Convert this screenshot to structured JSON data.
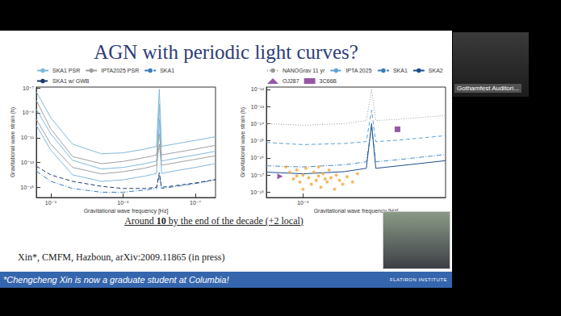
{
  "slide": {
    "title": "AGN with periodic light curves?",
    "caption": {
      "text": "Around 10 by the end of the decade (+2 local)",
      "bold": "10"
    },
    "citation": "Xin*, CMFM, Hazboun, arXiv:2009.11865 (in press)",
    "footer": "*Chengcheng Xin is now a graduate student at Columbia!",
    "logo": "FLATIRON INSTITUTE",
    "video_label": "Gothamfest Auditori..."
  },
  "chart_data": [
    {
      "type": "line",
      "log": true,
      "grid": false,
      "legend": "top-left",
      "xlabel": "Gravitational wave frequency [Hz]",
      "ylabel": "Gravitational wave strain (h)",
      "xlim": [
        6.3e-10,
        1.9e-07
      ],
      "ylim": [
        1.5e-16,
        1.2e-07
      ],
      "xticks": [
        {
          "value": 1e-09,
          "label": "10⁻⁹"
        },
        {
          "value": 1e-08,
          "label": "10⁻⁸"
        },
        {
          "value": 1e-07,
          "label": "10⁻⁷"
        }
      ],
      "yticks": [
        {
          "value": 1e-15,
          "label": "10⁻¹⁵"
        },
        {
          "value": 1e-13,
          "label": "10⁻¹³"
        },
        {
          "value": 1e-11,
          "label": "10⁻¹¹"
        },
        {
          "value": 1e-09,
          "label": "10⁻⁹"
        },
        {
          "value": 1e-07,
          "label": "10⁻⁷"
        }
      ],
      "series": [
        {
          "name": "SKA1 PSR",
          "color": "#7fb8dc",
          "line_style": "solid",
          "x": [
            6.3e-10,
            1e-09,
            2e-09,
            5e-09,
            1e-08,
            2e-08,
            2.9e-08,
            3.17e-08,
            3.4e-08,
            5e-08,
            1e-07,
            1.9e-07
          ],
          "values": [
            5e-08,
            4e-10,
            3e-12,
            5e-13,
            6e-13,
            1.2e-12,
            2e-12,
            8e-08,
            2e-12,
            3e-12,
            6e-12,
            1.2e-11
          ]
        },
        {
          "name": "SKA1 PSR",
          "color": "#7fb8dc",
          "line_style": "solid",
          "x": [
            6.3e-10,
            1e-09,
            2e-09,
            5e-09,
            1e-08,
            2e-08,
            2.9e-08,
            3.17e-08,
            3.4e-08,
            5e-08,
            1e-07,
            1.9e-07
          ],
          "values": [
            2e-09,
            2e-11,
            1.5e-13,
            3e-14,
            4e-14,
            8e-14,
            1.3e-13,
            5e-09,
            1.3e-13,
            2e-13,
            4e-13,
            8e-13
          ]
        },
        {
          "name": "SKA1 PSR",
          "color": "#7fb8dc",
          "line_style": "solid",
          "x": [
            6.3e-10,
            1e-09,
            2e-09,
            5e-09,
            1e-08,
            2e-08,
            2.9e-08,
            3.17e-08,
            3.4e-08,
            5e-08,
            1e-07,
            1.9e-07
          ],
          "values": [
            1e-10,
            1e-12,
            1e-14,
            3e-15,
            4e-15,
            8e-15,
            1.3e-14,
            3e-10,
            1.3e-14,
            2e-14,
            4e-14,
            8e-14
          ]
        },
        {
          "name": "IPTA2025 PSR",
          "color": "#a0a0a0",
          "line_style": "solid",
          "x": [
            6.3e-10,
            1e-09,
            2e-09,
            5e-09,
            1e-08,
            2e-08,
            2.9e-08,
            3.17e-08,
            3.4e-08,
            5e-08,
            1e-07,
            1.9e-07
          ],
          "values": [
            1e-08,
            5e-11,
            3e-13,
            8e-14,
            1.2e-13,
            2.5e-13,
            4e-13,
            2e-11,
            4e-13,
            6e-13,
            1.2e-12,
            2.4e-12
          ]
        },
        {
          "name": "IPTA2025 PSR",
          "color": "#a0a0a0",
          "line_style": "solid",
          "x": [
            6.3e-10,
            1e-09,
            2e-09,
            5e-09,
            1e-08,
            2e-08,
            2.9e-08,
            3.17e-08,
            3.4e-08,
            5e-08,
            1e-07,
            1.9e-07
          ],
          "values": [
            3e-10,
            3e-12,
            4e-14,
            1.2e-14,
            1.8e-14,
            3.5e-14,
            6e-14,
            3e-12,
            6e-14,
            9e-14,
            1.8e-13,
            3.5e-13
          ]
        },
        {
          "name": "SKA1",
          "color": "#3a7bbf",
          "line_style": "dash-dot",
          "x": [
            6.3e-10,
            1e-09,
            2e-09,
            5e-09,
            1e-08,
            2e-08,
            2.9e-08,
            3.17e-08,
            3.4e-08,
            5e-08,
            1e-07,
            1.9e-07
          ],
          "values": [
            2e-14,
            3e-15,
            8e-16,
            4e-16,
            4e-16,
            6e-16,
            8e-16,
            1e-14,
            8e-16,
            1.1e-15,
            2e-15,
            4e-15
          ]
        },
        {
          "name": "SKA1 w/ GWB",
          "color": "#1f3b6e",
          "line_style": "dashed",
          "x": [
            6.3e-10,
            1e-09,
            2e-09,
            5e-09,
            1e-08,
            2e-08,
            2.9e-08,
            3.17e-08,
            3.4e-08,
            5e-08,
            1e-07,
            1.9e-07
          ],
          "values": [
            5e-14,
            1e-14,
            3e-15,
            1.2e-15,
            8e-16,
            8e-16,
            1e-15,
            1.5e-14,
            1e-15,
            1.3e-15,
            2.2e-15,
            4.2e-15
          ]
        }
      ]
    },
    {
      "type": "line",
      "log": true,
      "grid": false,
      "legend": "top-left",
      "xlabel": "Gravitational wave frequency [Hz]",
      "ylabel": "Gravitational wave strain (h)",
      "xlim": [
        5.4e-09,
        1.1e-07
      ],
      "ylim": [
        5e-19,
        1.35e-12
      ],
      "xticks": [
        {
          "value": 1e-08,
          "label": "10⁻⁸"
        }
      ],
      "yticks": [
        {
          "value": 1e-18,
          "label": "10⁻¹⁸"
        },
        {
          "value": 1e-17,
          "label": "10⁻¹⁷"
        },
        {
          "value": 1e-16,
          "label": "10⁻¹⁶"
        },
        {
          "value": 1e-15,
          "label": "10⁻¹⁵"
        },
        {
          "value": 1e-14,
          "label": "10⁻¹⁴"
        },
        {
          "value": 1e-13,
          "label": "10⁻¹³"
        },
        {
          "value": 1e-12,
          "label": "10⁻¹²"
        }
      ],
      "series": [
        {
          "name": "NANOGrav 11 yr",
          "color": "#9a9a9a",
          "line_style": "dotted",
          "x": [
            5.4e-09,
            1e-08,
            2e-08,
            2.9e-08,
            3.17e-08,
            3.4e-08,
            5e-08,
            1.1e-07
          ],
          "values": [
            1e-14,
            8e-15,
            1e-14,
            1.5e-14,
            1e-12,
            1.5e-14,
            1.8e-14,
            3e-14
          ]
        },
        {
          "name": "IPTA 2025",
          "color": "#5fa3d6",
          "line_style": "dashed",
          "x": [
            5.4e-09,
            1e-08,
            2e-08,
            2.9e-08,
            3.17e-08,
            3.4e-08,
            5e-08,
            1.1e-07
          ],
          "values": [
            8e-16,
            6e-16,
            7e-16,
            9e-16,
            6e-14,
            9e-16,
            1.1e-15,
            2e-15
          ]
        },
        {
          "name": "SKA1",
          "color": "#4a90c8",
          "line_style": "dash-dot",
          "x": [
            5.4e-09,
            1e-08,
            2e-08,
            2.9e-08,
            3.17e-08,
            3.4e-08,
            5e-08,
            1.1e-07
          ],
          "values": [
            3.5e-17,
            3e-17,
            4e-17,
            6e-17,
            6e-15,
            6e-17,
            8e-17,
            1.6e-16
          ]
        },
        {
          "name": "SKA2",
          "color": "#1f4e8c",
          "line_style": "solid",
          "x": [
            5.4e-09,
            1e-08,
            2e-08,
            2.9e-08,
            3.17e-08,
            3.4e-08,
            5e-08,
            1.1e-07
          ],
          "values": [
            1.5e-17,
            1.2e-17,
            1.6e-17,
            2.5e-17,
            1e-14,
            2.5e-17,
            3.5e-17,
            7e-17
          ]
        },
        {
          "name": "OJ287",
          "color": "#7b2d8e",
          "type": "scatter",
          "marker": "triangle-right",
          "x": [
            6.8e-09
          ],
          "values": [
            8.5e-18
          ]
        },
        {
          "name": "3C66B",
          "color": "#7b2d8e",
          "type": "scatter",
          "marker": "square",
          "x": [
            4.9e-08
          ],
          "values": [
            4.7e-15
          ]
        },
        {
          "color": "#f2a93b",
          "type": "scatter",
          "marker": "circle",
          "x": [
            7.5e-09,
            8e-09,
            8.5e-09,
            9e-09,
            9.5e-09,
            1e-08,
            1.05e-08,
            1.1e-08,
            1.15e-08,
            1.2e-08,
            1.25e-08,
            1.3e-08,
            1.35e-08,
            1.4e-08,
            1.5e-08,
            1.55e-08,
            1.6e-08,
            1.7e-08,
            1.75e-08,
            1.85e-08,
            1.95e-08,
            2.1e-08,
            2.3e-08,
            2.5e-08,
            1e-08,
            1.3e-08,
            9e-09,
            1.45e-08
          ],
          "values": [
            3e-17,
            1.5e-17,
            6e-18,
            2e-17,
            4e-18,
            1e-17,
            2.5e-17,
            7e-18,
            3e-18,
            1.5e-17,
            5e-18,
            9e-18,
            2e-18,
            1.2e-17,
            4e-18,
            2e-17,
            7e-18,
            1.5e-18,
            1e-17,
            5e-18,
            3e-18,
            8e-18,
            4e-18,
            1.2e-17,
            1.5e-18,
            3e-17,
            9e-18,
            6e-18
          ]
        }
      ]
    }
  ]
}
